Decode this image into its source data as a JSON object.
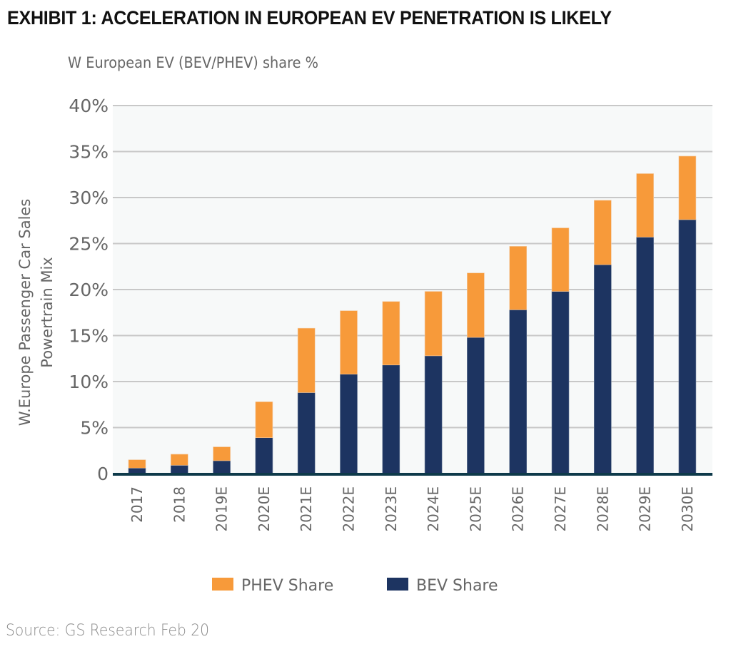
{
  "header": {
    "title": "EXHIBIT 1: ACCELERATION IN EUROPEAN EV PENETRATION IS LIKELY",
    "subtitle": "W European EV (BEV/PHEV) share %"
  },
  "footer": {
    "source": "Source: GS Research Feb 20"
  },
  "colors": {
    "phev": "#F79A3A",
    "bev": "#1D3461",
    "axis": "#0E3A4A",
    "grid": "#C8C8C8",
    "plot_bg": "#F7F9F9"
  },
  "chart_data": {
    "type": "bar",
    "stacked": true,
    "title": "EXHIBIT 1: ACCELERATION IN EUROPEAN EV PENETRATION IS LIKELY",
    "subtitle": "W European EV (BEV/PHEV) share %",
    "xlabel": "",
    "ylabel": [
      "W.Europe Passenger Car Sales",
      "Powertrain Mix"
    ],
    "ylim": [
      0,
      40
    ],
    "yticks": [
      0,
      5,
      10,
      15,
      20,
      25,
      30,
      35,
      40
    ],
    "ytick_labels": [
      "0",
      "5%",
      "10%",
      "15%",
      "20%",
      "25%",
      "30%",
      "35%",
      "40%"
    ],
    "grid": true,
    "legend_position": "bottom",
    "categories": [
      "2017",
      "2018",
      "2019E",
      "2020E",
      "2021E",
      "2022E",
      "2023E",
      "2024E",
      "2025E",
      "2026E",
      "2027E",
      "2028E",
      "2029E",
      "2030E"
    ],
    "series": [
      {
        "name": "BEV Share",
        "color": "#1D3461",
        "values": [
          0.6,
          0.9,
          1.4,
          3.9,
          8.8,
          10.8,
          11.8,
          12.8,
          14.8,
          17.8,
          19.8,
          22.7,
          25.7,
          27.6
        ]
      },
      {
        "name": "PHEV Share",
        "color": "#F79A3A",
        "values": [
          0.9,
          1.2,
          1.5,
          3.9,
          7.0,
          6.9,
          6.9,
          7.0,
          7.0,
          6.9,
          6.9,
          7.0,
          6.9,
          6.9
        ]
      }
    ],
    "legend": [
      {
        "name": "PHEV Share",
        "color": "#F79A3A"
      },
      {
        "name": "BEV Share",
        "color": "#1D3461"
      }
    ]
  }
}
